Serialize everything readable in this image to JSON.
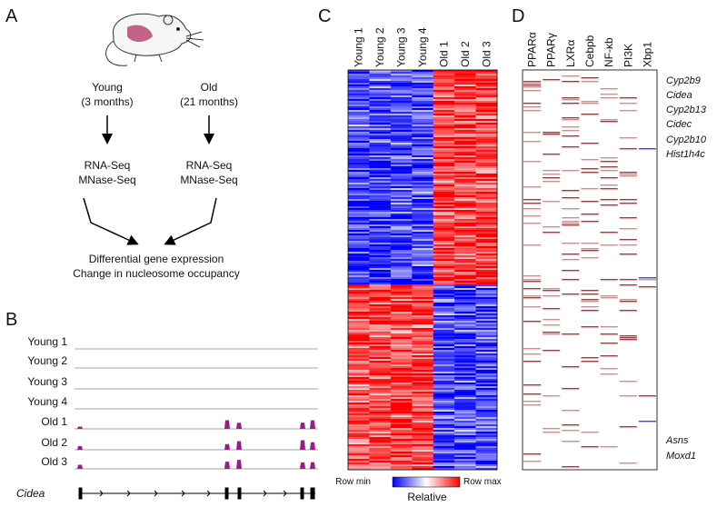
{
  "panels": {
    "a": "A",
    "b": "B",
    "c": "C",
    "d": "D"
  },
  "panel_a": {
    "young": {
      "label": "Young",
      "age": "(3 months)"
    },
    "old": {
      "label": "Old",
      "age": "(21 months)"
    },
    "assays": [
      "RNA-Seq",
      "MNase-Seq"
    ],
    "outcomes": [
      "Differential gene expression",
      "Change in nucleosome occupancy"
    ]
  },
  "panel_b": {
    "tracks": [
      "Young 1",
      "Young 2",
      "Young 3",
      "Young 4",
      "Old 1",
      "Old 2",
      "Old 3"
    ],
    "gene": "Cidea"
  },
  "panel_c": {
    "columns": [
      "Young 1",
      "Young 2",
      "Young 3",
      "Young 4",
      "Old 1",
      "Old 2",
      "Old 3"
    ],
    "legend": {
      "min": "Row min",
      "max": "Row max",
      "title": "Relative"
    }
  },
  "panel_d": {
    "columns": [
      "PPARα",
      "PPARγ",
      "LXRα",
      "Cebpb",
      "NF-κb",
      "PI3K",
      "Xbp1"
    ],
    "genes_top": [
      "Cyp2b9",
      "Cidea",
      "Cyp2b13",
      "Cidec",
      "Cyp2b10",
      "Hist1h4c"
    ],
    "genes_bottom": [
      "Asns",
      "Moxd1"
    ]
  }
}
